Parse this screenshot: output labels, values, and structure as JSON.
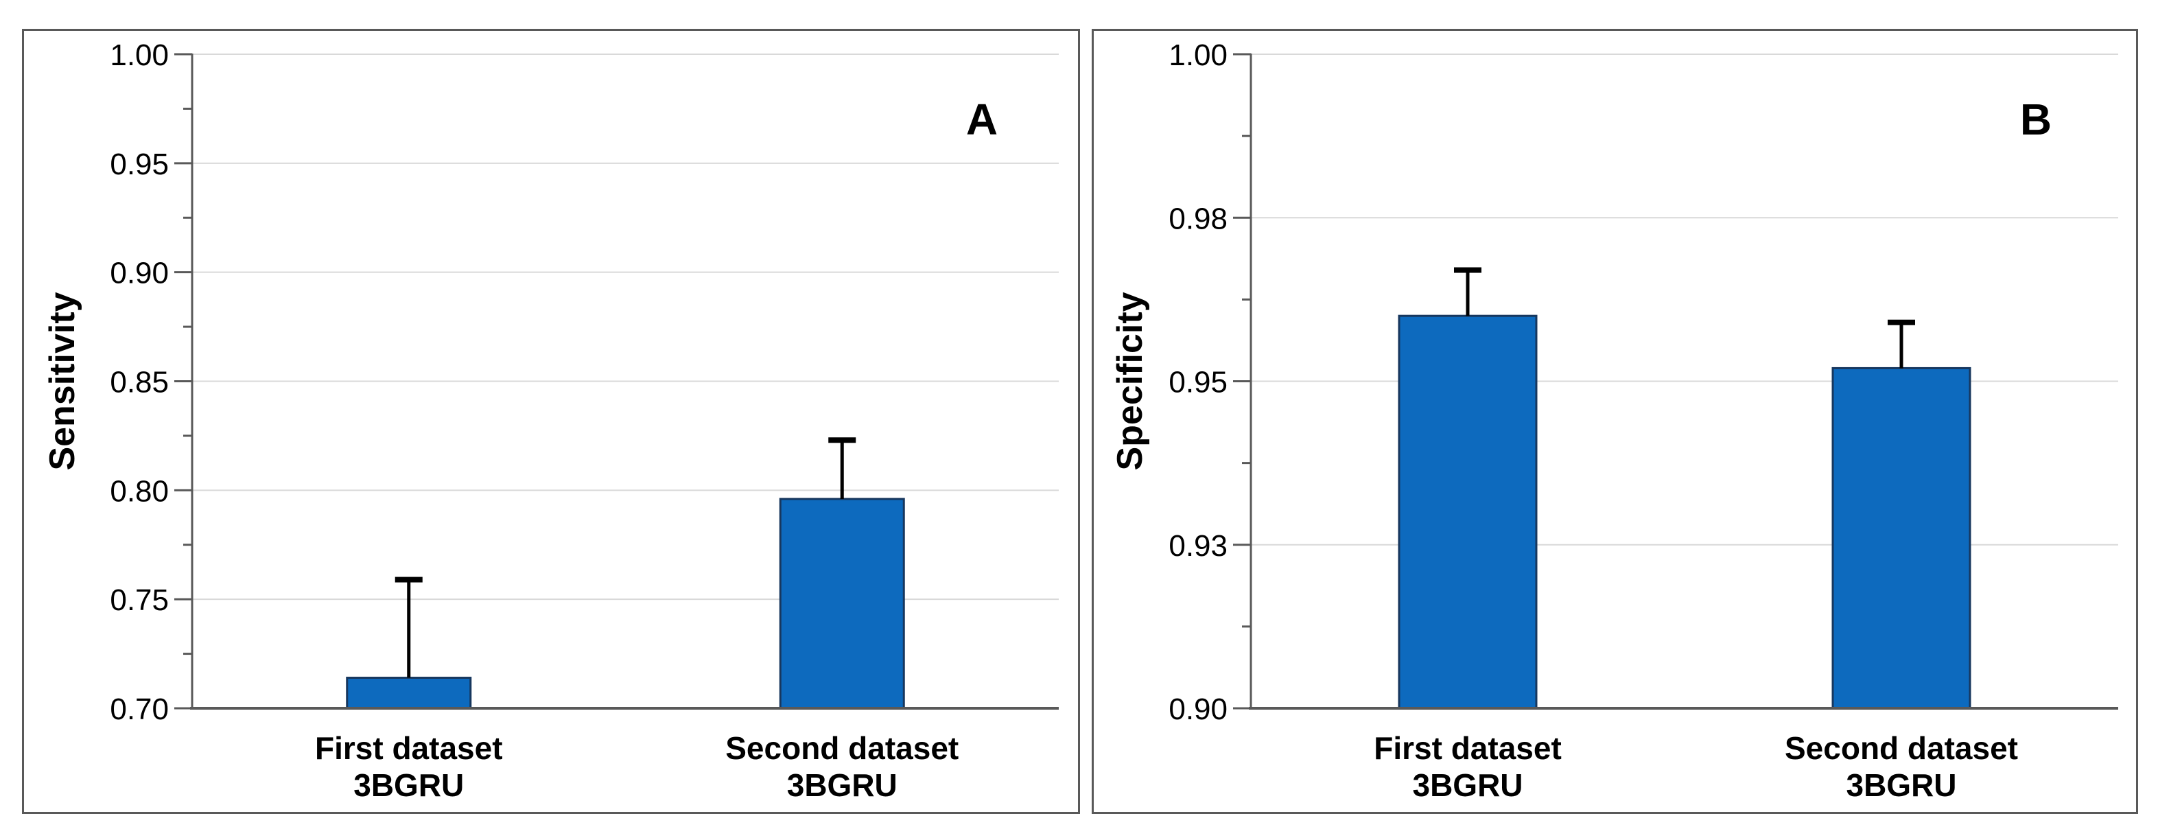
{
  "figure": {
    "background": "#ffffff",
    "panel_border_color": "#595959",
    "axis_line_color": "#595959",
    "gridline_color": "#d9d9d9",
    "bar_fill": "#0d6abe",
    "bar_border": "#17375e",
    "error_bar_color": "#000000",
    "text_color": "#000000"
  },
  "chart_data": [
    {
      "type": "bar",
      "panel_label": "A",
      "title": "",
      "xlabel": "",
      "ylabel": "Sensitivity",
      "categories": [
        [
          "First dataset",
          "3BGRU"
        ],
        [
          "Second dataset",
          "3BGRU"
        ]
      ],
      "values": [
        0.714,
        0.796
      ],
      "error_up": [
        0.045,
        0.027
      ],
      "ylim": [
        0.7,
        1.0
      ],
      "ytick_major": 0.05,
      "ytick_minor": 0.025,
      "ytick_labels": [
        "0.70",
        "0.75",
        "0.80",
        "0.85",
        "0.90",
        "0.95",
        "1.00"
      ],
      "grid": true,
      "legend": false
    },
    {
      "type": "bar",
      "panel_label": "B",
      "title": "",
      "xlabel": "",
      "ylabel": "Specificity",
      "categories": [
        [
          "First dataset",
          "3BGRU"
        ],
        [
          "Second dataset",
          "3BGRU"
        ]
      ],
      "values": [
        0.96,
        0.952
      ],
      "error_up": [
        0.007,
        0.007
      ],
      "ylim": [
        0.9,
        1.0
      ],
      "ytick_major": 0.025,
      "ytick_minor": 0.0125,
      "ytick_labels": [
        "0.90",
        "0.93",
        "0.95",
        "0.98",
        "1.00"
      ],
      "grid": true,
      "legend": false
    }
  ]
}
